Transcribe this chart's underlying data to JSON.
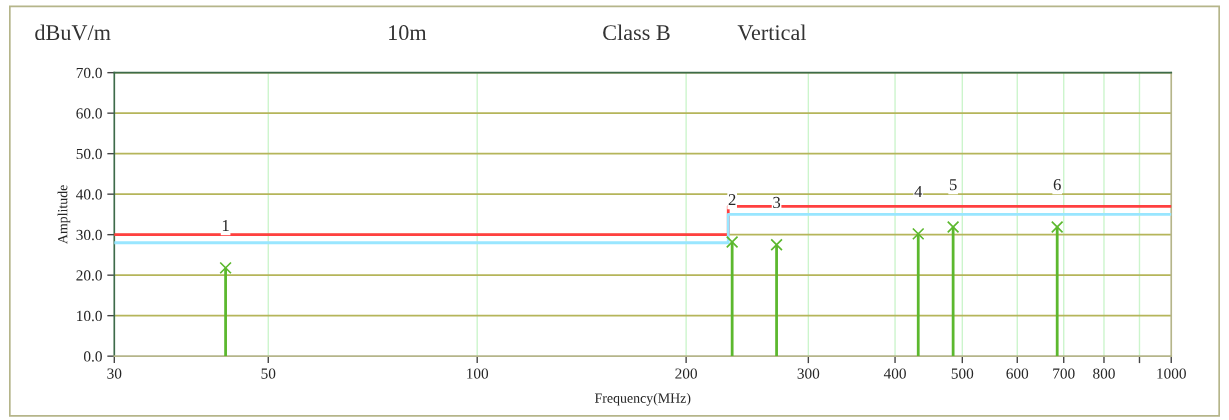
{
  "chart_data": {
    "type": "step",
    "xlabel": "Frequency(MHz)",
    "ylabel": "Amplitude",
    "annotations": [
      "dBuV/m",
      "10m",
      "Class B",
      "Vertical",
      {
        "text": "1",
        "x": 43.4,
        "y": 21.8
      },
      {
        "text": "2",
        "x": 233,
        "y": 28.2
      },
      {
        "text": "3",
        "x": 270,
        "y": 27.5
      },
      {
        "text": "4",
        "x": 432,
        "y": 30.2
      },
      {
        "text": "5",
        "x": 485,
        "y": 31.9
      },
      {
        "text": "6",
        "x": 685,
        "y": 31.9
      }
    ],
    "series": [
      {
        "color": "#ff4040",
        "x": [
          30,
          230,
          1000
        ],
        "values": [
          30,
          37,
          37
        ]
      },
      {
        "color": "#99e6ff",
        "x": [
          30,
          230,
          1000
        ],
        "values": [
          28,
          35,
          35
        ]
      },
      {
        "type": "lollipop",
        "color": "#5cb82e",
        "marker": "cross",
        "x": [
          43.4,
          233,
          270,
          432,
          485,
          685
        ],
        "values": [
          21.8,
          28.2,
          27.5,
          30.2,
          31.9,
          31.9
        ]
      }
    ],
    "log": "x",
    "grid": true,
    "legend": false,
    "xlim": [
      30,
      1000
    ],
    "ylim": [
      0,
      70
    ],
    "xticks": [
      30,
      50,
      100,
      200,
      300,
      400,
      500,
      600,
      700,
      800,
      {
        "value": 900,
        "label": null
      },
      1000
    ],
    "yticks": [
      {
        "value": 0,
        "label": "0.0"
      },
      {
        "value": 10,
        "label": "10.0"
      },
      {
        "value": 20,
        "label": "20.0"
      },
      {
        "value": 30,
        "label": "30.0"
      },
      {
        "value": 40,
        "label": "40.0"
      },
      {
        "value": 50,
        "label": "50.0"
      },
      {
        "value": 60,
        "label": "60.0"
      },
      {
        "value": 70,
        "label": "70.0"
      }
    ]
  }
}
